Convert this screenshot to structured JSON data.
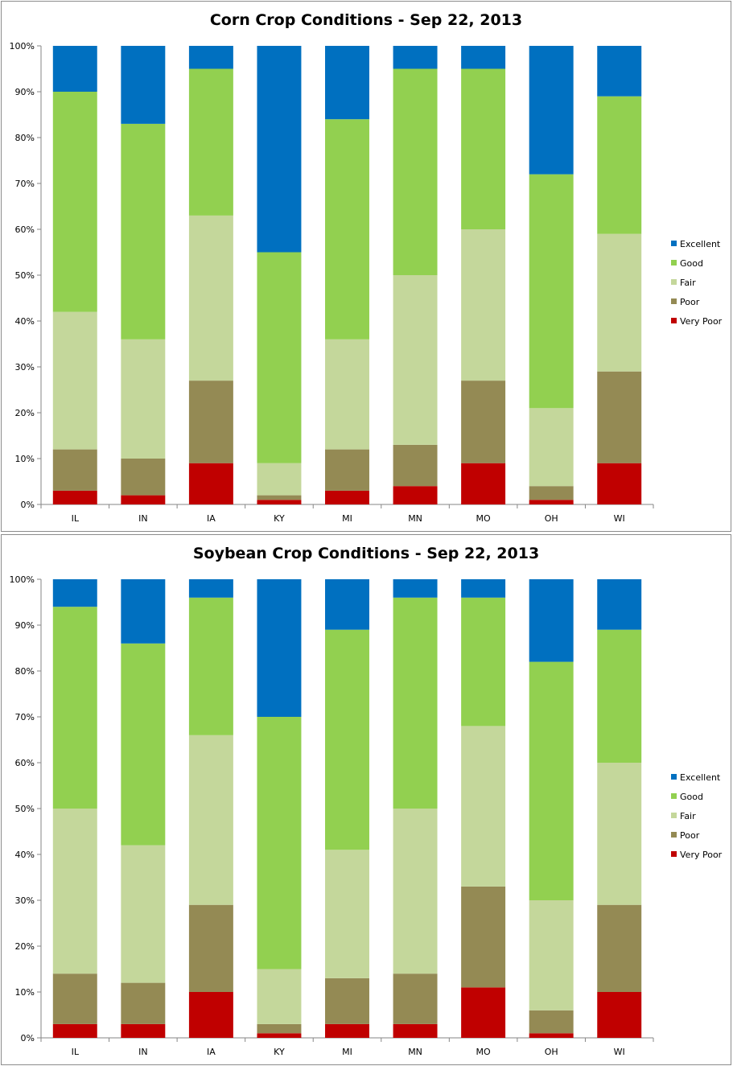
{
  "chart_data": [
    {
      "type": "bar",
      "stacked": true,
      "title": "Corn Crop Conditions - Sep 22, 2013",
      "categories": [
        "IL",
        "IN",
        "IA",
        "KY",
        "MI",
        "MN",
        "MO",
        "OH",
        "WI"
      ],
      "ylim": [
        0,
        100
      ],
      "y_ticks": [
        "0%",
        "10%",
        "20%",
        "30%",
        "40%",
        "50%",
        "60%",
        "70%",
        "80%",
        "90%",
        "100%"
      ],
      "grid": false,
      "legend_position": "right",
      "series": [
        {
          "name": "Very Poor",
          "color": "#c00000",
          "values": [
            3,
            2,
            9,
            1,
            3,
            4,
            9,
            1,
            9
          ]
        },
        {
          "name": "Poor",
          "color": "#948a54",
          "values": [
            9,
            8,
            18,
            1,
            9,
            9,
            18,
            3,
            20
          ]
        },
        {
          "name": "Fair",
          "color": "#c4d79b",
          "values": [
            30,
            26,
            36,
            7,
            24,
            37,
            33,
            17,
            30
          ]
        },
        {
          "name": "Good",
          "color": "#92d050",
          "values": [
            48,
            47,
            32,
            46,
            48,
            45,
            35,
            51,
            30
          ]
        },
        {
          "name": "Excellent",
          "color": "#0070c0",
          "values": [
            10,
            17,
            5,
            45,
            16,
            5,
            5,
            28,
            11
          ]
        }
      ],
      "legend_order": [
        "Excellent",
        "Good",
        "Fair",
        "Poor",
        "Very Poor"
      ]
    },
    {
      "type": "bar",
      "stacked": true,
      "title": "Soybean Crop Conditions - Sep 22, 2013",
      "categories": [
        "IL",
        "IN",
        "IA",
        "KY",
        "MI",
        "MN",
        "MO",
        "OH",
        "WI"
      ],
      "ylim": [
        0,
        100
      ],
      "y_ticks": [
        "0%",
        "10%",
        "20%",
        "30%",
        "40%",
        "50%",
        "60%",
        "70%",
        "80%",
        "90%",
        "100%"
      ],
      "grid": false,
      "legend_position": "right",
      "series": [
        {
          "name": "Very Poor",
          "color": "#c00000",
          "values": [
            3,
            3,
            10,
            1,
            3,
            3,
            11,
            1,
            10
          ]
        },
        {
          "name": "Poor",
          "color": "#948a54",
          "values": [
            11,
            9,
            19,
            2,
            10,
            11,
            22,
            5,
            19
          ]
        },
        {
          "name": "Fair",
          "color": "#c4d79b",
          "values": [
            36,
            30,
            37,
            12,
            28,
            36,
            35,
            24,
            31
          ]
        },
        {
          "name": "Good",
          "color": "#92d050",
          "values": [
            44,
            44,
            30,
            55,
            48,
            46,
            28,
            52,
            29
          ]
        },
        {
          "name": "Excellent",
          "color": "#0070c0",
          "values": [
            6,
            14,
            4,
            30,
            11,
            4,
            4,
            18,
            11
          ]
        }
      ],
      "legend_order": [
        "Excellent",
        "Good",
        "Fair",
        "Poor",
        "Very Poor"
      ]
    }
  ]
}
